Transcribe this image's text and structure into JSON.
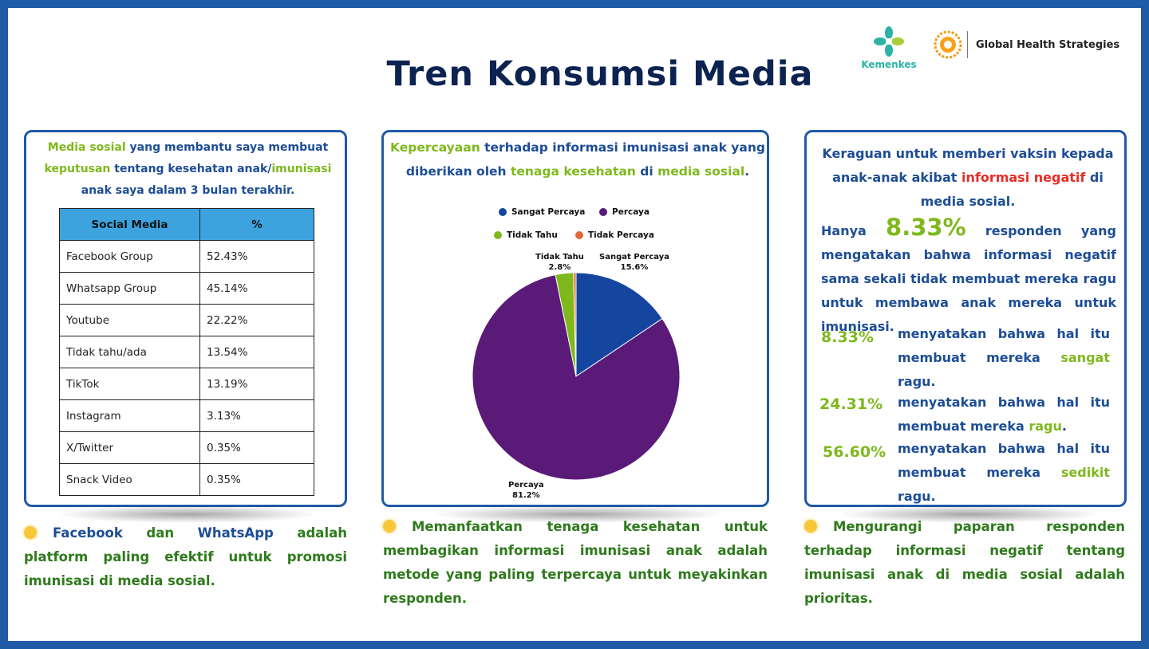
{
  "title": "Tren Konsumsi Media",
  "logos": {
    "kemenkes": "Kemenkes",
    "ghs": "Global Health Strategies"
  },
  "panel1": {
    "heading": {
      "a": "Media sosial",
      "b": " yang membantu saya membuat ",
      "c": "keputusan",
      "d": " tentang kesehatan anak/",
      "e": "imunisasi",
      "f": " anak saya dalam 3 bulan terakhir."
    },
    "table": {
      "headers": [
        "Social Media",
        "%"
      ],
      "rows": [
        [
          "Facebook Group",
          "52.43%"
        ],
        [
          "Whatsapp Group",
          "45.14%"
        ],
        [
          "Youtube",
          "22.22%"
        ],
        [
          "Tidak tahu/ada",
          "13.54%"
        ],
        [
          "TikTok",
          "13.19%"
        ],
        [
          "Instagram",
          "3.13%"
        ],
        [
          "X/Twitter",
          "0.35%"
        ],
        [
          "Snack Video",
          "0.35%"
        ]
      ]
    }
  },
  "panel2": {
    "heading": {
      "a": "Kepercayaan",
      "b": " terhadap informasi imunisasi anak yang diberikan oleh ",
      "c": "tenaga kesehatan",
      "d": " di ",
      "e": "media sosial",
      "f": "."
    }
  },
  "chart_data": {
    "type": "pie",
    "legend_position": "top",
    "slices": [
      {
        "name": "Sangat Percaya",
        "value": 15.6,
        "label": "15.6%",
        "color": "#1446a0"
      },
      {
        "name": "Percaya",
        "value": 81.2,
        "label": "81.2%",
        "color": "#5a1a78"
      },
      {
        "name": "Tidak Tahu",
        "value": 2.8,
        "label": "2.8%",
        "color": "#7fb81d"
      },
      {
        "name": "Tidak Percaya",
        "value": 0.4,
        "label": "",
        "color": "#e0683a"
      }
    ]
  },
  "panel3": {
    "heading": {
      "a": "Keraguan untuk memberi vaksin kepada anak-anak akibat ",
      "b": "informasi negatif",
      "c": " di media sosial."
    },
    "intro": {
      "prefix": "Hanya",
      "value": "8.33%",
      "text": "responden yang mengatakan bahwa informasi negatif sama sekali tidak membuat mereka ragu untuk membawa anak mereka untuk imunisasi."
    },
    "items": [
      {
        "value": "8.33%",
        "text": "menyatakan bahwa hal itu membuat mereka ",
        "em": "sangat",
        "tail": " ragu."
      },
      {
        "value": "24.31%",
        "text": "menyatakan bahwa hal itu membuat mereka ",
        "em": "ragu",
        "tail": "."
      },
      {
        "value": "56.60%",
        "text": "menyatakan bahwa hal itu membuat mereka ",
        "em": "sedikit",
        "tail": " ragu."
      }
    ]
  },
  "footers": {
    "f1": {
      "a": "Facebook",
      "b": " dan ",
      "c": "WhatsApp",
      "d": " adalah platform paling efektif untuk promosi imunisasi di media sosial."
    },
    "f2": "Memanfaatkan tenaga kesehatan untuk membagikan informasi imunisasi anak adalah metode yang paling terpercaya untuk meyakinkan responden.",
    "f3": "Mengurangi paparan responden terhadap informasi negatif tentang imunisasi anak di media sosial adalah prioritas."
  }
}
